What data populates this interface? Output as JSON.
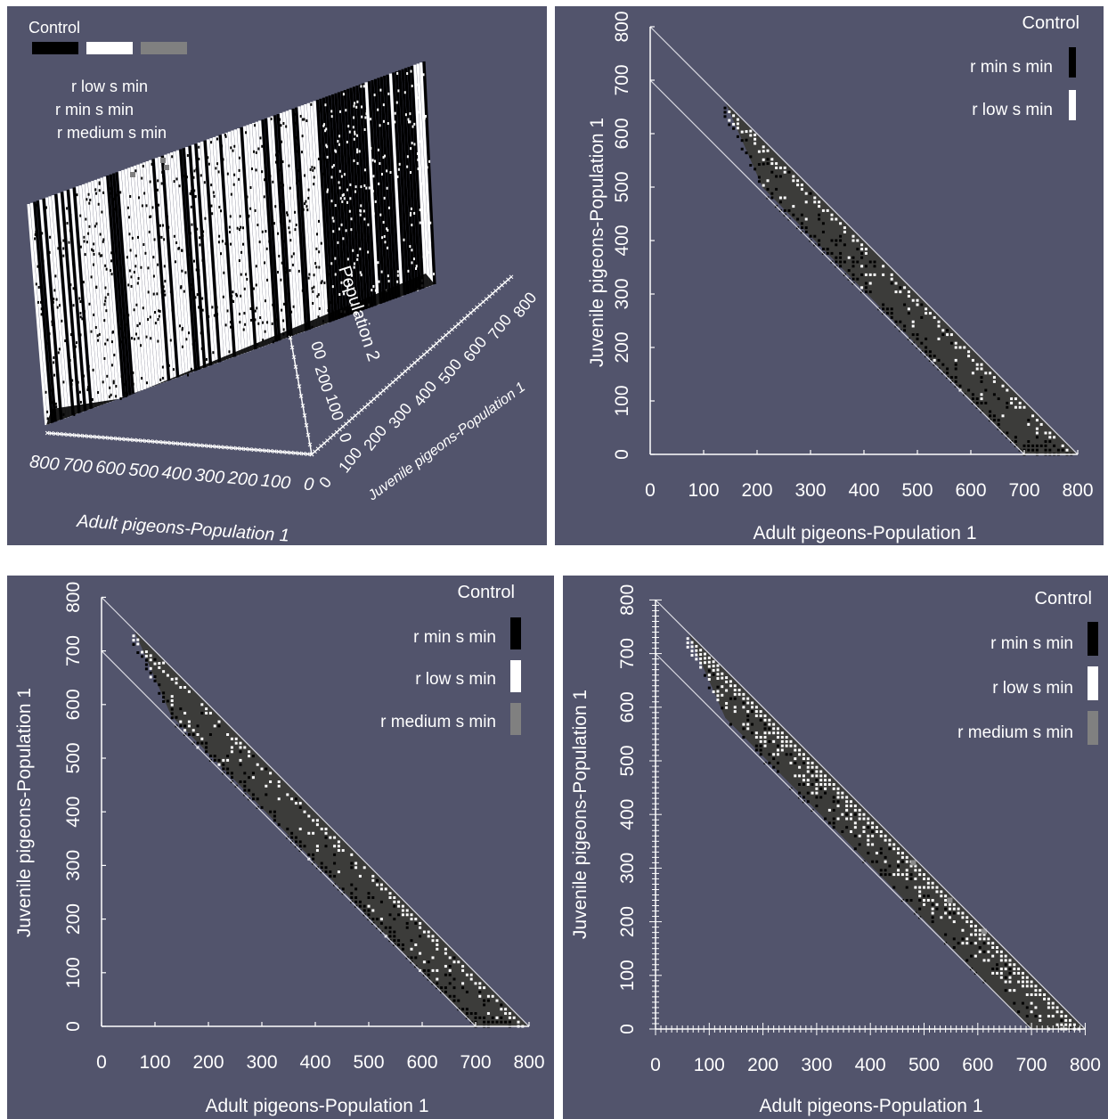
{
  "chart_data": [
    {
      "type": "scatter",
      "view": "3d",
      "legend": {
        "title": "Control",
        "placement": "top-left",
        "entries": [
          {
            "label": "r low s min",
            "color": "#ffffff"
          },
          {
            "label": "r min s min",
            "color": "#000000"
          },
          {
            "label": "r medium s min",
            "color": "#808080"
          }
        ]
      },
      "axes": {
        "x": {
          "label": "Adult pigeons-Population 1",
          "ticks": [
            "800",
            "700",
            "600",
            "500",
            "400",
            "300",
            "200",
            "100",
            "0"
          ]
        },
        "y": {
          "label": "Juvenile pigeons-Population 1",
          "ticks": [
            "0",
            "100",
            "200",
            "300",
            "400",
            "500",
            "600",
            "700",
            "800"
          ]
        },
        "z": {
          "label": "Population 2",
          "ticks": [
            "0",
            "100",
            "200",
            "300"
          ],
          "tick_labels_shown": [
            "0",
            "100",
            "200",
            "00"
          ]
        }
      }
    },
    {
      "type": "scatter",
      "legend": {
        "title": "Control",
        "placement": "top-right",
        "entries": [
          {
            "label": "r min s min",
            "color": "#000000"
          },
          {
            "label": "r low s min",
            "color": "#ffffff"
          }
        ]
      },
      "xlabel": "Adult pigeons-Population 1",
      "ylabel": "Juvenile pigeons-Population 1",
      "xlim": [
        0,
        800
      ],
      "ylim": [
        0,
        800
      ],
      "xticks": [
        0,
        100,
        200,
        300,
        400,
        500,
        600,
        700,
        800
      ],
      "yticks": [
        0,
        100,
        200,
        300,
        400,
        500,
        600,
        700,
        800
      ],
      "boundary_lines": [
        {
          "x_plus_y": 700
        },
        {
          "x_plus_y": 800
        }
      ],
      "region_start_x": 140,
      "band_color": "#3c3c3a",
      "dominant": "r min s min",
      "secondary": "r low s min",
      "secondary_share": 0.06
    },
    {
      "type": "scatter",
      "legend": {
        "title": "Control",
        "placement": "top-right",
        "entries": [
          {
            "label": "r min s min",
            "color": "#000000"
          },
          {
            "label": "r low s min",
            "color": "#ffffff"
          },
          {
            "label": "r medium s min",
            "color": "#808080"
          }
        ]
      },
      "xlabel": "Adult pigeons-Population 1",
      "ylabel": "Juvenile pigeons-Population 1",
      "xlim": [
        0,
        800
      ],
      "ylim": [
        0,
        800
      ],
      "xticks": [
        0,
        100,
        200,
        300,
        400,
        500,
        600,
        700,
        800
      ],
      "yticks": [
        0,
        100,
        200,
        300,
        400,
        500,
        600,
        700,
        800
      ],
      "boundary_lines": [
        {
          "x_plus_y": 700
        },
        {
          "x_plus_y": 800
        }
      ],
      "region_start_x": 60,
      "band_color": "#3c3c3a",
      "dominant": "r min s min",
      "secondary": "r low s min",
      "secondary_share": 0.08
    },
    {
      "type": "scatter",
      "legend": {
        "title": "Control",
        "placement": "top-right",
        "entries": [
          {
            "label": "r min s min",
            "color": "#000000"
          },
          {
            "label": "r low s min",
            "color": "#ffffff"
          },
          {
            "label": "r medium s min",
            "color": "#808080"
          }
        ]
      },
      "xlabel": "Adult pigeons-Population 1",
      "ylabel": "Juvenile pigeons-Population 1",
      "xlim": [
        0,
        800
      ],
      "ylim": [
        0,
        800
      ],
      "xticks": [
        0,
        100,
        200,
        300,
        400,
        500,
        600,
        700,
        800
      ],
      "yticks": [
        0,
        100,
        200,
        300,
        400,
        500,
        600,
        700,
        800
      ],
      "boundary_lines": [
        {
          "x_plus_y": 700
        },
        {
          "x_plus_y": 800
        }
      ],
      "region_start_x": 60,
      "band_color": "#3c3c3a",
      "dominant": "r min s min",
      "secondary": "r low s min",
      "secondary_share": 0.35
    }
  ]
}
